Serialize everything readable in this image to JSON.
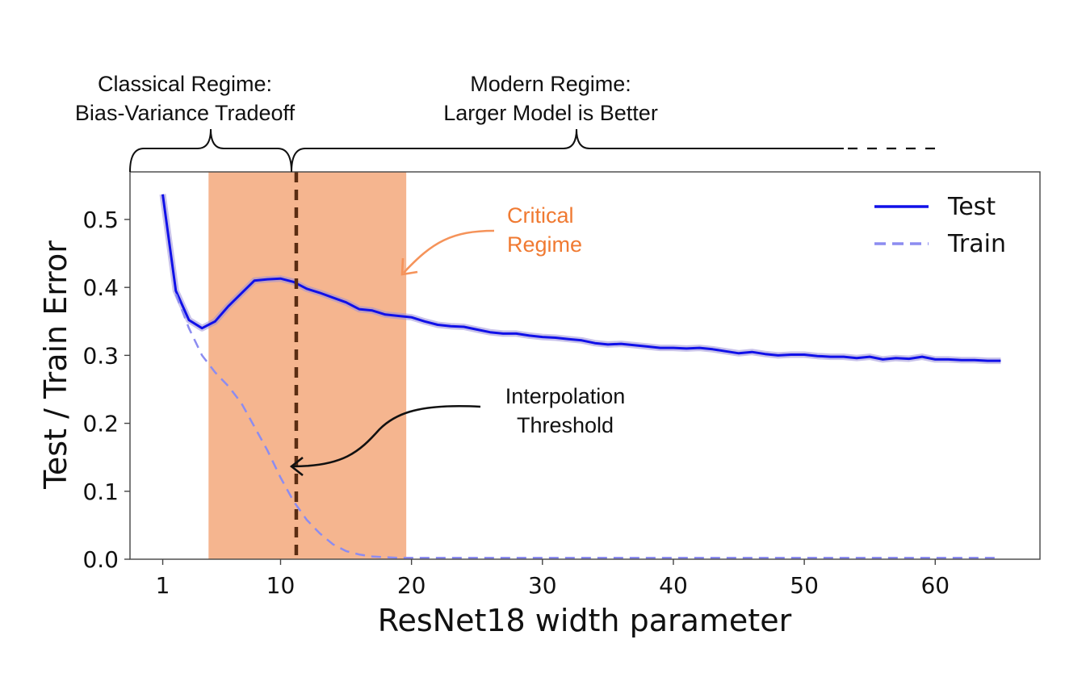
{
  "chart_data": {
    "type": "line",
    "xlabel": "ResNet18 width parameter",
    "ylabel": "Test / Train Error",
    "xlim": [
      -1.5,
      68
    ],
    "ylim": [
      0,
      0.57
    ],
    "xticks": [
      1,
      10,
      20,
      30,
      40,
      50,
      60
    ],
    "yticks": [
      0.0,
      0.1,
      0.2,
      0.3,
      0.4,
      0.5
    ],
    "ytick_labels": [
      "0.0",
      "0.1",
      "0.2",
      "0.3",
      "0.4",
      "0.5"
    ],
    "grid": false,
    "legend_position": "top-right",
    "series": [
      {
        "name": "Test",
        "color": "#1010e8",
        "style": "solid",
        "x": [
          1,
          2,
          3,
          4,
          5,
          6,
          7,
          8,
          9,
          10,
          11,
          12,
          13,
          14,
          15,
          16,
          17,
          18,
          19,
          20,
          21,
          22,
          23,
          24,
          25,
          26,
          27,
          28,
          29,
          30,
          31,
          32,
          33,
          34,
          35,
          36,
          37,
          38,
          39,
          40,
          41,
          42,
          43,
          44,
          45,
          46,
          47,
          48,
          49,
          50,
          51,
          52,
          53,
          54,
          55,
          56,
          57,
          58,
          59,
          60,
          61,
          62,
          63,
          64,
          65
        ],
        "values": [
          0.537,
          0.395,
          0.352,
          0.34,
          0.35,
          0.372,
          0.391,
          0.41,
          0.412,
          0.413,
          0.408,
          0.398,
          0.392,
          0.385,
          0.378,
          0.368,
          0.366,
          0.36,
          0.358,
          0.356,
          0.35,
          0.345,
          0.343,
          0.342,
          0.338,
          0.334,
          0.332,
          0.332,
          0.329,
          0.327,
          0.326,
          0.324,
          0.322,
          0.318,
          0.316,
          0.317,
          0.315,
          0.313,
          0.311,
          0.311,
          0.31,
          0.311,
          0.309,
          0.306,
          0.303,
          0.305,
          0.302,
          0.3,
          0.301,
          0.301,
          0.299,
          0.298,
          0.298,
          0.296,
          0.298,
          0.294,
          0.296,
          0.295,
          0.298,
          0.294,
          0.294,
          0.293,
          0.293,
          0.292,
          0.292
        ]
      },
      {
        "name": "Train",
        "color": "#8c8cf0",
        "style": "dashed",
        "x": [
          2,
          3,
          4,
          5,
          6,
          7,
          8,
          9,
          10,
          11,
          12,
          13,
          14,
          15,
          16,
          17,
          18,
          19,
          20,
          22,
          25,
          30,
          35,
          40,
          45,
          50,
          55,
          60,
          65
        ],
        "values": [
          0.39,
          0.34,
          0.3,
          0.275,
          0.255,
          0.23,
          0.195,
          0.16,
          0.12,
          0.085,
          0.058,
          0.038,
          0.022,
          0.012,
          0.007,
          0.004,
          0.003,
          0.002,
          0.002,
          0.002,
          0.002,
          0.002,
          0.002,
          0.002,
          0.002,
          0.002,
          0.002,
          0.002,
          0.002
        ]
      }
    ],
    "shaded_region": {
      "x_start": 4.5,
      "x_end": 19.6,
      "color": "#f5b58f"
    },
    "threshold_line": {
      "x": 11.2,
      "color": "#5a2d12"
    },
    "annotations": {
      "classical_line1": "Classical Regime:",
      "classical_line2": "Bias-Variance Tradeoff",
      "modern_line1": "Modern Regime:",
      "modern_line2": "Larger Model is Better",
      "critical_line1": "Critical",
      "critical_line2": "Regime",
      "critical_color": "#f07a32",
      "interp_line1": "Interpolation",
      "interp_line2": "Threshold"
    }
  }
}
